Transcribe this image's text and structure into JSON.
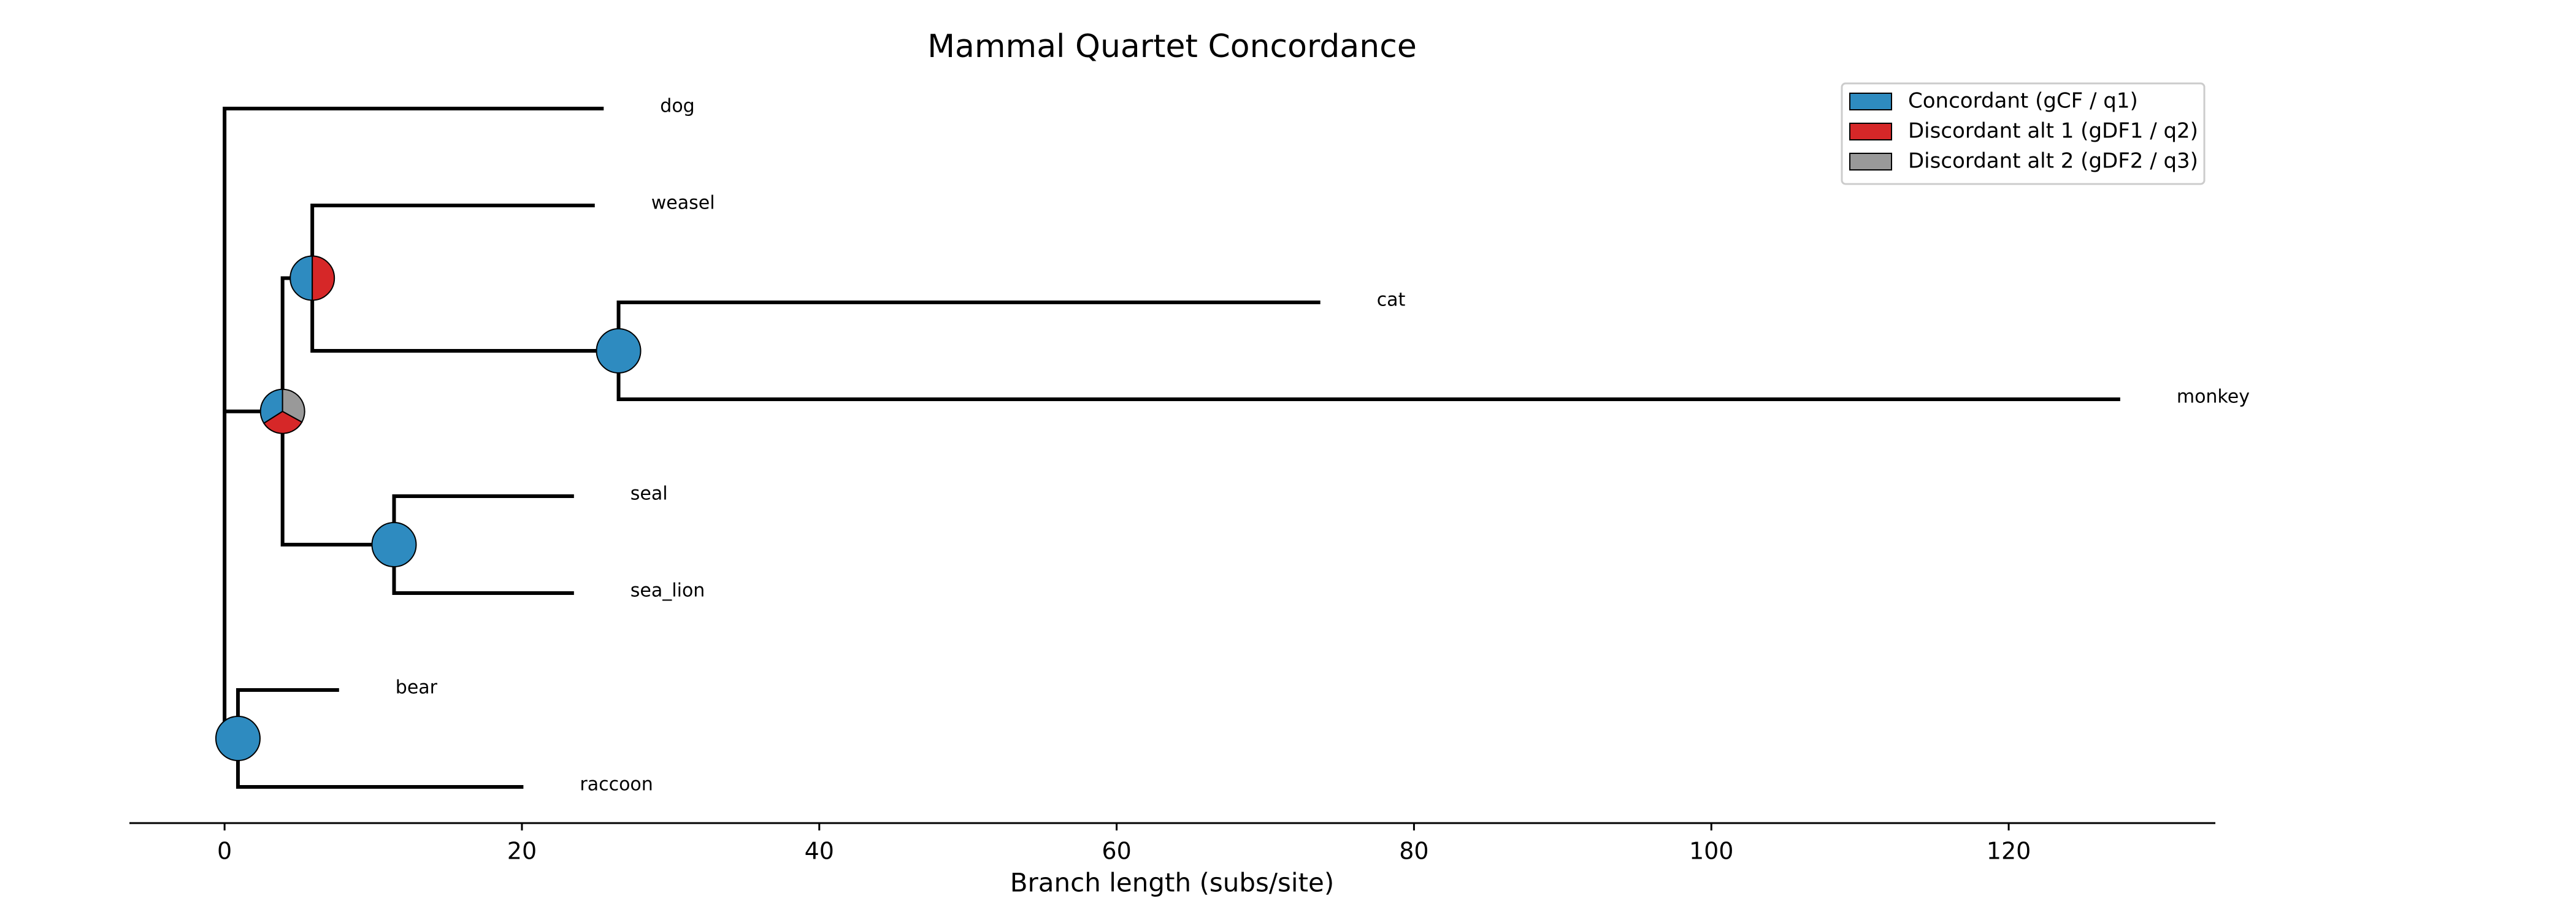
{
  "chart_data": {
    "type": "tree",
    "title": "Mammal Quartet Concordance",
    "x_label": "Branch length (subs/site)",
    "xlim": [
      -6.4,
      133.9
    ],
    "xticks": [
      0,
      20,
      40,
      60,
      80,
      100,
      120
    ],
    "legend_position": "upper right",
    "series": [
      {
        "name": "Concordant (gCF / q1)",
        "color": "#2e8bc0"
      },
      {
        "name": "Discordant alt 1 (gDF1 / q2)",
        "color": "#d62728"
      },
      {
        "name": "Discordant alt 2 (gDF2 / q3)",
        "color": "#999999"
      }
    ],
    "tree": {
      "x": 0,
      "children": [
        {
          "name": "dog",
          "x": 25.5
        },
        {
          "x": 3.9,
          "pie": [
            34,
            33,
            33
          ],
          "children": [
            {
              "x": 5.9,
              "pie": [
                50,
                50,
                0
              ],
              "children": [
                {
                  "name": "weasel",
                  "x": 24.9
                },
                {
                  "x": 26.5,
                  "pie": [
                    100,
                    0,
                    0
                  ],
                  "children": [
                    {
                      "name": "cat",
                      "x": 73.7
                    },
                    {
                      "name": "monkey",
                      "x": 127.5
                    }
                  ]
                }
              ]
            },
            {
              "x": 11.4,
              "pie": [
                100,
                0,
                0
              ],
              "children": [
                {
                  "name": "seal",
                  "x": 23.5
                },
                {
                  "name": "sea_lion",
                  "x": 23.5
                }
              ]
            }
          ]
        },
        {
          "x": 0.9,
          "pie": [
            100,
            0,
            0
          ],
          "children": [
            {
              "name": "bear",
              "x": 7.7
            },
            {
              "name": "raccoon",
              "x": 20.1
            }
          ]
        }
      ]
    }
  }
}
